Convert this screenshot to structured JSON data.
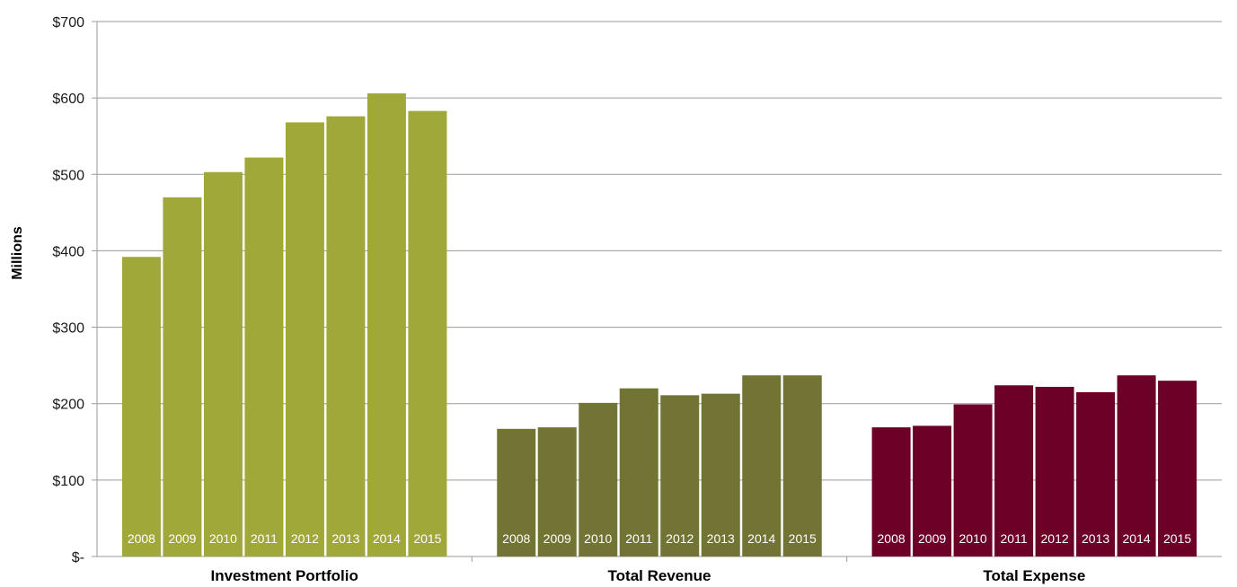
{
  "chart_data": {
    "type": "bar",
    "ylabel": "Millions",
    "ylim": [
      0,
      700
    ],
    "yticks": [
      0,
      100,
      200,
      300,
      400,
      500,
      600,
      700
    ],
    "ytick_labels": [
      "$-",
      "$100",
      "$200",
      "$300",
      "$400",
      "$500",
      "$600",
      "$700"
    ],
    "grid": true,
    "years": [
      "2008",
      "2009",
      "2010",
      "2011",
      "2012",
      "2013",
      "2014",
      "2015"
    ],
    "groups": [
      {
        "category": "Investment Portfolio",
        "color": "#a0a83a",
        "values": [
          392,
          470,
          503,
          522,
          568,
          576,
          606,
          583
        ]
      },
      {
        "category": "Total Revenue",
        "color": "#727433",
        "values": [
          167,
          169,
          201,
          220,
          211,
          213,
          237,
          237
        ]
      },
      {
        "category": "Total Expense",
        "color": "#6c0027",
        "values": [
          169,
          171,
          199,
          224,
          222,
          215,
          237,
          230
        ]
      }
    ]
  }
}
